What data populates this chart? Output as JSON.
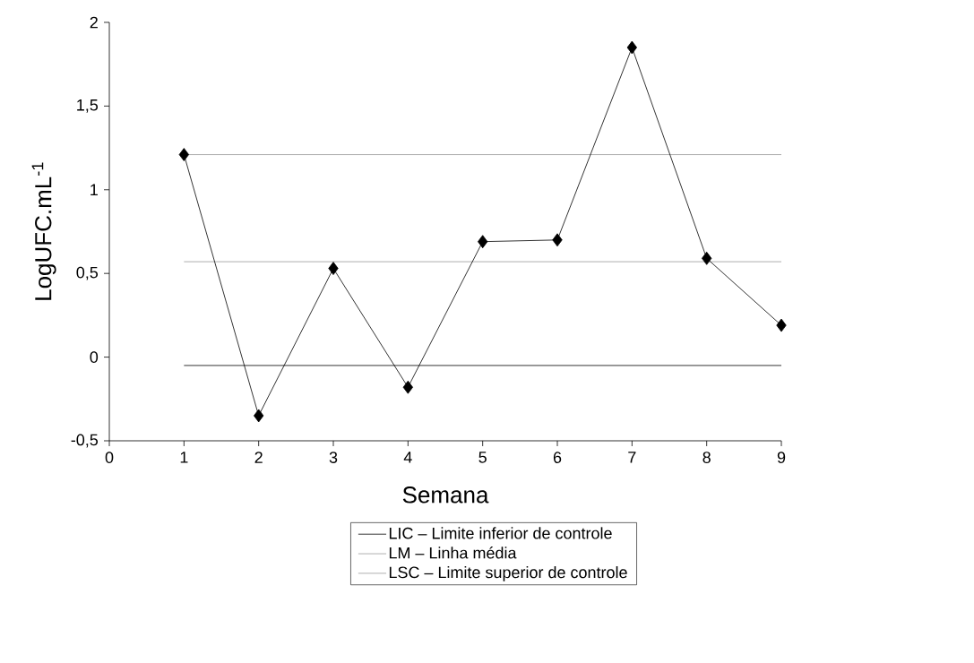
{
  "chart_data": {
    "type": "line",
    "xlabel": "Semana",
    "ylabel": "LogUFC.mL$^{-1}$",
    "x": [
      1,
      2,
      3,
      4,
      5,
      6,
      7,
      8,
      9
    ],
    "series": [
      {
        "color": "#000000",
        "values": [
          1.21,
          -0.35,
          0.53,
          -0.18,
          0.69,
          0.7,
          1.85,
          0.59,
          0.19
        ]
      }
    ],
    "marker": "diamond",
    "line_style": "solid",
    "grid": false,
    "legend": "bottom",
    "xlim": [
      0,
      9
    ],
    "xticks": [
      0,
      1,
      2,
      3,
      4,
      5,
      6,
      7,
      8,
      9
    ],
    "ylim": [
      -0.5,
      2
    ],
    "yticks": [
      {
        "value": -0.5,
        "label": "-0,5"
      },
      0,
      {
        "value": 0.5,
        "label": "0,5"
      },
      1,
      {
        "value": 1.5,
        "label": "1,5"
      },
      2
    ],
    "ref_lines": [
      {
        "axis": "y",
        "value": -0.05,
        "label": "LIC – Limite inferior de controle",
        "color": "#000000"
      },
      {
        "axis": "y",
        "value": 0.57,
        "label": "LM – Linha média",
        "color": "#999999"
      },
      {
        "axis": "y",
        "value": 1.21,
        "label": "LSC – Limite superior de controle",
        "color": "#999999"
      }
    ]
  }
}
